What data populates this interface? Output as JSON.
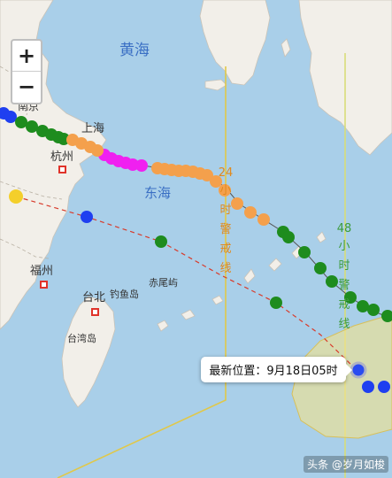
{
  "zoom": {
    "in_label": "+",
    "out_label": "−"
  },
  "labels": {
    "yellow_sea": "黄海",
    "east_sea": "东海",
    "nanjing": "南京",
    "shanghai": "上海",
    "hangzhou": "杭州",
    "fuzhou": "福州",
    "taibei": "台北",
    "diaoyu": "钓鱼岛",
    "chiwei": "赤尾屿",
    "taiwan": "台湾岛"
  },
  "warning_24": [
    "24",
    "小",
    "时",
    "警",
    "戒",
    "线"
  ],
  "warning_48": [
    "48",
    "小",
    "时",
    "警",
    "戒",
    "线"
  ],
  "latest_position": "最新位置：9月18日05时",
  "credit": "头条 @岁月如梭",
  "colors": {
    "sea": "#a9cfe9",
    "land": "#f2efe9",
    "line_24": "#e0c84a",
    "line_48": "#d8dc7a",
    "track_blue": "#1f3ff0",
    "track_green": "#1e8c1e",
    "track_orange": "#f4a04c",
    "track_magenta": "#f020f0",
    "forecast_yellow": "#f4cf2a",
    "label_blue": "#3a6fc4",
    "label_orange": "#e08a1e",
    "label_green": "#3c9c3c"
  }
}
